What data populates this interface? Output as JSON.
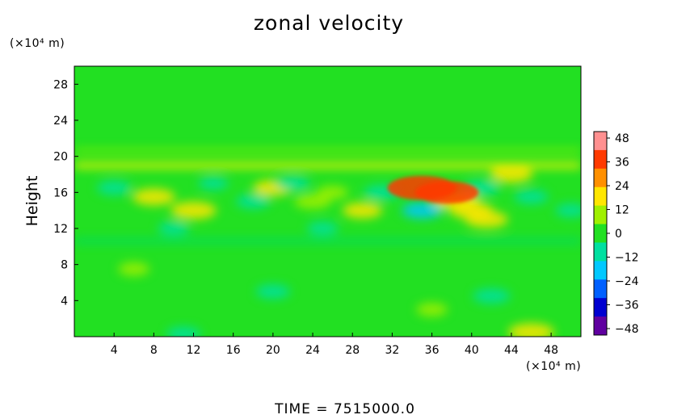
{
  "chart_data": {
    "type": "heatmap",
    "title": "zonal velocity",
    "xlabel": "",
    "x_unit": "(×10⁴ m)",
    "ylabel": "Height",
    "y_unit": "(×10⁴ m)",
    "xlim": [
      0,
      51
    ],
    "ylim": [
      0,
      30
    ],
    "x_ticks": [
      "4",
      "8",
      "12",
      "16",
      "20",
      "24",
      "28",
      "32",
      "36",
      "40",
      "44",
      "48"
    ],
    "y_ticks": [
      "4",
      "8",
      "12",
      "16",
      "20",
      "24",
      "28"
    ],
    "colorbar": {
      "ticks": [
        "48",
        "36",
        "24",
        "12",
        "0",
        "−12",
        "−24",
        "−36",
        "−48"
      ],
      "range": [
        -48,
        48
      ],
      "colors": [
        "#ff9090",
        "#ff3a00",
        "#ff9000",
        "#ffe600",
        "#a0f000",
        "#22e022",
        "#00e0a0",
        "#00c8ff",
        "#0060ff",
        "#0000d0",
        "#6000a0"
      ]
    },
    "background_color": "#22e022",
    "features": [
      {
        "x": 35.0,
        "y": 16.5,
        "value": 32
      },
      {
        "x": 37.5,
        "y": 16.0,
        "value": 28
      },
      {
        "x": 38.5,
        "y": 15.0,
        "value": 16
      },
      {
        "x": 40.0,
        "y": 14.0,
        "value": 14
      },
      {
        "x": 41.5,
        "y": 13.0,
        "value": 14
      },
      {
        "x": 44.0,
        "y": 18.0,
        "value": 14
      },
      {
        "x": 12.0,
        "y": 14.0,
        "value": 16
      },
      {
        "x": 8.0,
        "y": 15.5,
        "value": 14
      },
      {
        "x": 20.0,
        "y": 16.5,
        "value": 12
      },
      {
        "x": 24.0,
        "y": 15.0,
        "value": 10
      },
      {
        "x": 29.0,
        "y": 14.0,
        "value": 12
      },
      {
        "x": 26.0,
        "y": 16.0,
        "value": 6
      },
      {
        "x": 4.0,
        "y": 16.5,
        "value": -8
      },
      {
        "x": 10.0,
        "y": 12.0,
        "value": -6
      },
      {
        "x": 14.0,
        "y": 17.0,
        "value": -5
      },
      {
        "x": 18.0,
        "y": 15.0,
        "value": -8
      },
      {
        "x": 22.0,
        "y": 17.0,
        "value": -8
      },
      {
        "x": 31.0,
        "y": 16.0,
        "value": -10
      },
      {
        "x": 35.0,
        "y": 14.0,
        "value": -12
      },
      {
        "x": 41.0,
        "y": 16.5,
        "value": -10
      },
      {
        "x": 46.0,
        "y": 15.5,
        "value": -8
      },
      {
        "x": 50.0,
        "y": 14.0,
        "value": -6
      },
      {
        "x": 25.0,
        "y": 12.0,
        "value": -6
      },
      {
        "x": 20.0,
        "y": 5.0,
        "value": -8
      },
      {
        "x": 42.0,
        "y": 4.5,
        "value": -10
      },
      {
        "x": 11.0,
        "y": 0.3,
        "value": -8
      },
      {
        "x": 6.0,
        "y": 7.5,
        "value": 6
      },
      {
        "x": 36.0,
        "y": 3.0,
        "value": 6
      },
      {
        "x": 46.0,
        "y": 0.5,
        "value": 16
      }
    ]
  },
  "time_label": "TIME  =  7515000.0"
}
